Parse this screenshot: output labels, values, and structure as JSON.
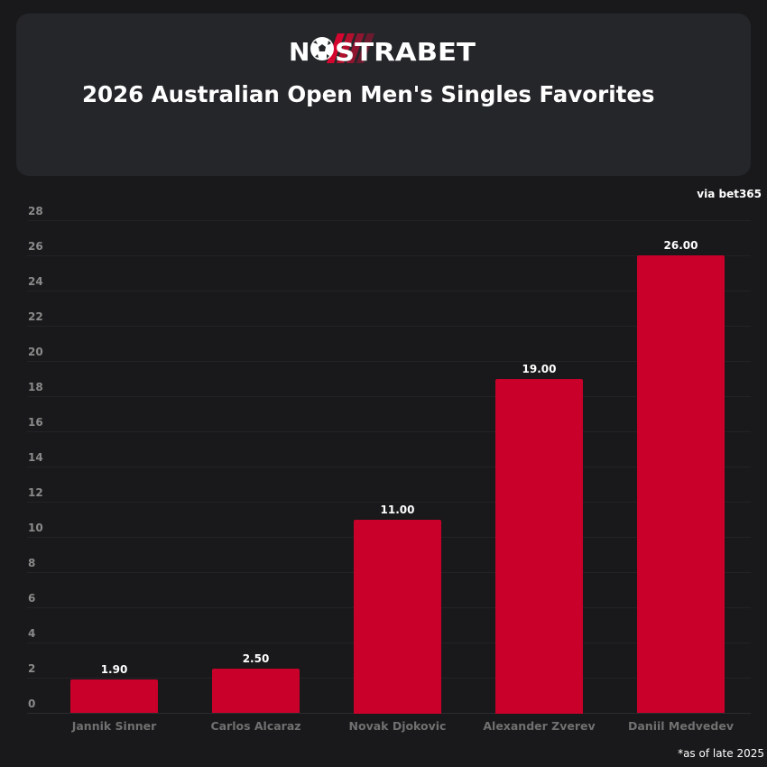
{
  "header": {
    "brand": "NOSTRABET",
    "brand_part1": "N",
    "brand_part2": "STRABET",
    "title": "2026 Australian Open Men's Singles Favorites"
  },
  "source_note": "via bet365",
  "footnote": "*as of late 2025",
  "colors": {
    "background": "#19191b",
    "panel": "#25262a",
    "bar": "#c8002a",
    "tick_label": "#8a8a8a",
    "category_label": "#707070",
    "value_label": "#ffffff"
  },
  "chart_data": {
    "type": "bar",
    "title": "2026 Australian Open Men's Singles Favorites",
    "categories": [
      "Jannik Sinner",
      "Carlos Alcaraz",
      "Novak Djokovic",
      "Alexander Zverev",
      "Daniil Medvedev"
    ],
    "values": [
      1.9,
      2.5,
      11.0,
      19.0,
      26.0
    ],
    "value_labels": [
      "1.90",
      "2.50",
      "11.00",
      "19.00",
      "26.00"
    ],
    "xlabel": "",
    "ylabel": "",
    "ylim": [
      0,
      28
    ],
    "yticks": [
      0,
      2,
      4,
      6,
      8,
      10,
      12,
      14,
      16,
      18,
      20,
      22,
      24,
      26,
      28
    ],
    "grid": true,
    "legend": null,
    "source": "via bet365",
    "annotation": "*as of late 2025"
  }
}
